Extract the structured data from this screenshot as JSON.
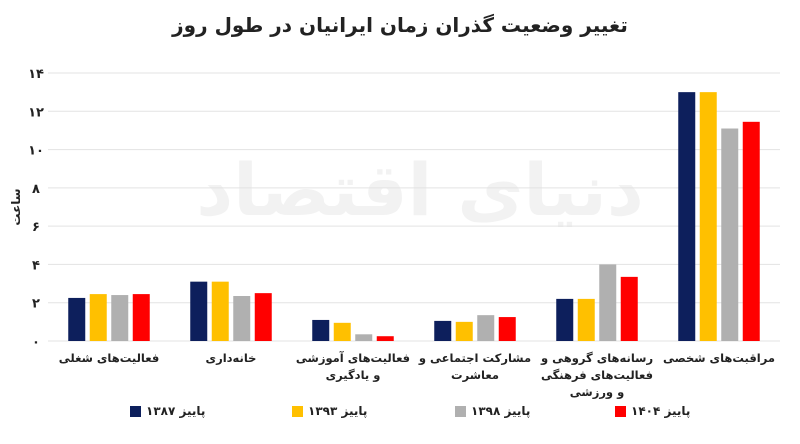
{
  "chart_data": {
    "type": "bar",
    "title": "تغییر وضعیت گذران زمان ایرانیان در طول روز",
    "watermark": "دنیای اقتصاد",
    "y_label": "ساعت",
    "categories": [
      "فعالیت‌های شغلی",
      "خانه‌داری",
      "فعالیت‌های آموزشی و یادگیری",
      "مشارکت اجتماعی و معاشرت",
      "رسانه‌های گروهی و فعالیت‌های فرهنگی و ورزشی",
      "مراقبت‌های شخصی"
    ],
    "series": [
      {
        "name": "پاییز ۱۳۸۷",
        "color": "#0d1f5c",
        "values": [
          2.25,
          3.1,
          1.1,
          1.05,
          2.2,
          13.0
        ]
      },
      {
        "name": "پاییز ۱۳۹۳",
        "color": "#ffc000",
        "values": [
          2.45,
          3.1,
          0.95,
          1.0,
          2.2,
          13.0
        ]
      },
      {
        "name": "پاییز ۱۳۹۸",
        "color": "#b0b0b0",
        "values": [
          2.4,
          2.35,
          0.35,
          1.35,
          4.0,
          11.1
        ]
      },
      {
        "name": "پاییز ۱۴۰۴",
        "color": "#ff0000",
        "values": [
          2.45,
          2.5,
          0.25,
          1.25,
          3.35,
          11.45
        ]
      }
    ],
    "ylim": [
      0,
      14
    ],
    "yticks": [
      {
        "value": 0,
        "label": "۰"
      },
      {
        "value": 2,
        "label": "۲"
      },
      {
        "value": 4,
        "label": "۴"
      },
      {
        "value": 6,
        "label": "۶"
      },
      {
        "value": 8,
        "label": "۸"
      },
      {
        "value": 10,
        "label": "۱۰"
      },
      {
        "value": 12,
        "label": "۱۲"
      },
      {
        "value": 14,
        "label": "۱۴"
      }
    ],
    "grid": true
  }
}
